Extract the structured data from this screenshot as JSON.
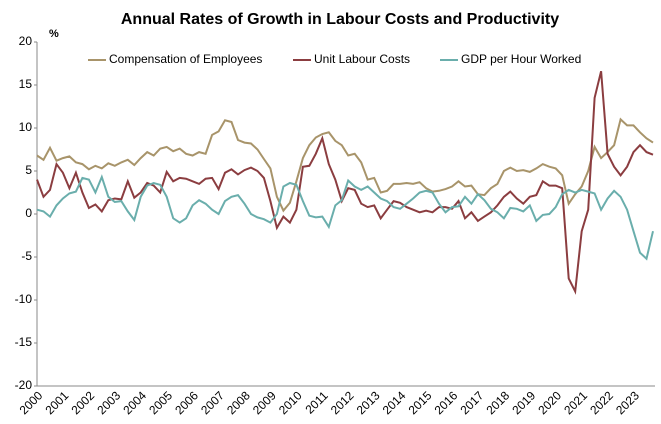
{
  "chart_data": {
    "type": "line",
    "title": "Annual Rates of Growth in Labour Costs and Productivity",
    "y_label": "%",
    "categories": [
      "2000",
      null,
      null,
      null,
      "2001",
      null,
      null,
      null,
      "2002",
      null,
      null,
      null,
      "2003",
      null,
      null,
      null,
      "2004",
      null,
      null,
      null,
      "2005",
      null,
      null,
      null,
      "2006",
      null,
      null,
      null,
      "2007",
      null,
      null,
      null,
      "2008",
      null,
      null,
      null,
      "2009",
      null,
      null,
      null,
      "2010",
      null,
      null,
      null,
      "2011",
      null,
      null,
      null,
      "2012",
      null,
      null,
      null,
      "2013",
      null,
      null,
      null,
      "2014",
      null,
      null,
      null,
      "2015",
      null,
      null,
      null,
      "2016",
      null,
      null,
      null,
      "2017",
      null,
      null,
      null,
      "2018",
      null,
      null,
      null,
      "2019",
      null,
      null,
      null,
      "2020",
      null,
      null,
      null,
      "2021",
      null,
      null,
      null,
      "2022",
      null,
      null,
      null,
      "2023",
      null,
      null,
      null
    ],
    "series": [
      {
        "name": "Compensation of Employees",
        "color": "#a8946a",
        "values": [
          6.8,
          6.3,
          7.7,
          6.2,
          6.5,
          6.7,
          6.0,
          5.8,
          5.2,
          5.6,
          5.3,
          5.9,
          5.6,
          6.0,
          6.3,
          5.7,
          6.5,
          7.2,
          6.8,
          7.6,
          7.8,
          7.3,
          7.6,
          7.0,
          6.8,
          7.2,
          7.0,
          9.2,
          9.6,
          10.9,
          10.7,
          8.6,
          8.3,
          8.2,
          7.5,
          6.4,
          5.3,
          2.0,
          0.4,
          1.3,
          3.8,
          6.5,
          8.0,
          8.9,
          9.3,
          9.5,
          8.5,
          8.0,
          6.8,
          7.0,
          6.0,
          4.0,
          4.2,
          2.5,
          2.7,
          3.5,
          3.5,
          3.6,
          3.5,
          3.7,
          3.0,
          2.6,
          2.7,
          2.9,
          3.2,
          3.8,
          3.2,
          3.3,
          2.3,
          2.2,
          3.0,
          3.5,
          5.0,
          5.4,
          5.0,
          5.1,
          4.9,
          5.3,
          5.8,
          5.5,
          5.3,
          4.5,
          1.2,
          2.3,
          3.2,
          5.0,
          7.8,
          6.5,
          7.2,
          8.0,
          11.0,
          10.3,
          10.3,
          9.5,
          8.8,
          8.3
        ]
      },
      {
        "name": "Unit Labour Costs",
        "color": "#8b3d40",
        "values": [
          4.0,
          2.0,
          2.8,
          5.8,
          4.8,
          3.0,
          4.8,
          2.5,
          0.7,
          1.1,
          0.3,
          1.6,
          1.8,
          1.7,
          3.8,
          1.9,
          2.5,
          3.6,
          3.3,
          2.5,
          4.9,
          3.8,
          4.2,
          4.1,
          3.8,
          3.5,
          4.1,
          4.2,
          2.9,
          4.8,
          5.2,
          4.6,
          5.1,
          5.4,
          5.0,
          4.2,
          1.5,
          -1.6,
          -0.3,
          -1.0,
          0.5,
          5.5,
          5.6,
          7.0,
          8.8,
          5.8,
          4.0,
          1.5,
          3.0,
          2.8,
          1.2,
          0.8,
          1.0,
          -0.5,
          0.5,
          1.5,
          1.3,
          0.8,
          0.5,
          0.2,
          0.4,
          0.2,
          0.8,
          0.8,
          0.6,
          1.5,
          -0.5,
          0.2,
          -0.8,
          -0.3,
          0.2,
          1.0,
          2.0,
          2.6,
          1.8,
          1.2,
          2.0,
          2.2,
          3.8,
          3.3,
          3.3,
          3.0,
          -7.5,
          -9.0,
          -2.0,
          0.5,
          13.5,
          16.6,
          7.0,
          5.5,
          4.5,
          5.5,
          7.2,
          8.0,
          7.2,
          6.9
        ]
      },
      {
        "name": "GDP per Hour Worked",
        "color": "#6aaeac",
        "values": [
          0.5,
          0.3,
          -0.3,
          1.0,
          1.8,
          2.4,
          2.6,
          4.2,
          4.0,
          2.5,
          4.3,
          2.0,
          1.4,
          1.5,
          0.3,
          -0.7,
          2.0,
          3.3,
          3.6,
          3.4,
          2.0,
          -0.5,
          -1.0,
          -0.5,
          1.0,
          1.6,
          1.2,
          0.5,
          0.0,
          1.5,
          2.0,
          2.2,
          1.2,
          0.0,
          -0.4,
          -0.6,
          -1.0,
          0.0,
          3.2,
          3.6,
          3.4,
          1.5,
          -0.2,
          -0.4,
          -0.3,
          -1.5,
          1.0,
          1.6,
          3.9,
          3.2,
          2.8,
          3.2,
          2.5,
          1.8,
          1.5,
          0.8,
          0.6,
          1.2,
          1.8,
          2.5,
          2.7,
          2.5,
          1.2,
          0.2,
          0.8,
          0.9,
          2.0,
          1.2,
          2.3,
          1.6,
          0.6,
          0.2,
          -0.5,
          0.7,
          0.6,
          0.3,
          1.0,
          -0.8,
          -0.1,
          0.0,
          0.8,
          2.3,
          2.8,
          2.5,
          2.8,
          2.6,
          2.4,
          0.5,
          1.8,
          2.7,
          2.0,
          0.5,
          -2.0,
          -4.5,
          -5.2,
          -2.0
        ]
      }
    ],
    "ylim": [
      -20,
      20
    ],
    "yticks": [
      -20,
      -15,
      -10,
      -5,
      0,
      5,
      10,
      15,
      20
    ],
    "grid": false,
    "legend": "top"
  }
}
